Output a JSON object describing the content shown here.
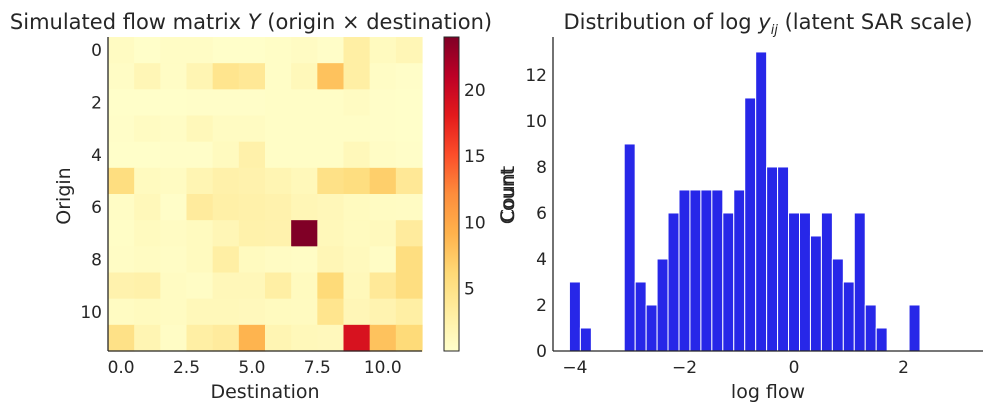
{
  "chart_data": [
    {
      "type": "heatmap",
      "title_prefix": "Simulated flow matrix ",
      "title_var": "Y",
      "title_suffix": " (origin × destination)",
      "xlabel": "Destination",
      "ylabel": "Origin",
      "colormap": "YlOrRd",
      "x_ticks": [
        0.0,
        2.5,
        5.0,
        7.5,
        10.0
      ],
      "x_tick_labels": [
        "0.0",
        "2.5",
        "5.0",
        "7.5",
        "10.0"
      ],
      "y_ticks": [
        0,
        2,
        4,
        6,
        8,
        10
      ],
      "y_tick_labels": [
        "0",
        "2",
        "4",
        "6",
        "8",
        "10"
      ],
      "xlim": [
        -0.5,
        11.5
      ],
      "ylim": [
        11.5,
        -0.5
      ],
      "colorbar": {
        "label": "Count",
        "range": [
          0.3,
          24
        ],
        "ticks": [
          5,
          10,
          15,
          20
        ],
        "tick_labels": [
          "5",
          "10",
          "15",
          "20"
        ]
      },
      "matrix": [
        [
          1,
          0.5,
          0.8,
          0.8,
          0.5,
          0.5,
          0.7,
          0.9,
          0.6,
          3,
          1.2,
          1.8
        ],
        [
          0.8,
          1.8,
          0.8,
          2,
          4.5,
          4,
          0.7,
          1.5,
          8,
          3,
          0.8,
          0.6
        ],
        [
          0.5,
          0.5,
          0.5,
          0.6,
          0.6,
          0.6,
          0.7,
          0.7,
          0.7,
          1,
          0.6,
          0.5
        ],
        [
          0.6,
          1,
          0.8,
          1.5,
          1,
          1,
          0.7,
          0.7,
          0.7,
          0.7,
          0.6,
          0.5
        ],
        [
          0.5,
          0.5,
          0.6,
          0.6,
          1.2,
          2.6,
          0.7,
          0.7,
          0.7,
          1.5,
          0.8,
          0.6
        ],
        [
          5.5,
          1.2,
          1,
          2,
          2.6,
          2.4,
          2,
          1.5,
          5,
          5.5,
          7,
          4
        ],
        [
          0.8,
          1.5,
          0.6,
          3.5,
          2.8,
          2.6,
          2.4,
          1.8,
          1.6,
          1.2,
          1,
          0.9
        ],
        [
          0.7,
          1.2,
          0.9,
          1.2,
          1.8,
          2.5,
          2.4,
          24,
          1.5,
          1.2,
          1.3,
          3.5
        ],
        [
          0.8,
          1,
          0.8,
          1.2,
          3,
          1.2,
          0.9,
          0.8,
          1.8,
          1.3,
          0.8,
          5.5
        ],
        [
          2.4,
          2.6,
          1,
          0.8,
          1.6,
          1.6,
          3,
          1.2,
          6,
          1.5,
          3.8,
          5.5
        ],
        [
          1,
          1.2,
          1,
          1.5,
          1.5,
          1.4,
          1.2,
          1.1,
          4.5,
          1.7,
          2.2,
          3
        ],
        [
          5,
          2,
          0.8,
          3,
          3.5,
          9,
          2,
          1.5,
          1.4,
          19,
          8,
          6
        ]
      ]
    },
    {
      "type": "histogram",
      "title_prefix": "Distribution of log ",
      "title_var": "y",
      "title_sub": "ij",
      "title_suffix": " (latent SAR scale)",
      "xlabel": "log flow",
      "ylabel": "Count",
      "color": "#2727e8",
      "bin_start": -4.1,
      "bin_width": 0.2,
      "counts": [
        3,
        1,
        0,
        0,
        0,
        9,
        3,
        2,
        4,
        6,
        7,
        7,
        7,
        7,
        6,
        7,
        11,
        13,
        8,
        8,
        6,
        6,
        5,
        6,
        4,
        3,
        6,
        2,
        1,
        0,
        0,
        2
      ],
      "xlim": [
        -4.4,
        3.45
      ],
      "ylim": [
        0,
        13.65
      ],
      "x_ticks": [
        -4,
        -2,
        0,
        2
      ],
      "x_tick_labels": [
        "−4",
        "−2",
        "0",
        "2"
      ],
      "y_ticks": [
        0,
        2,
        4,
        6,
        8,
        10,
        12
      ],
      "y_tick_labels": [
        "0",
        "2",
        "4",
        "6",
        "8",
        "10",
        "12"
      ]
    }
  ]
}
